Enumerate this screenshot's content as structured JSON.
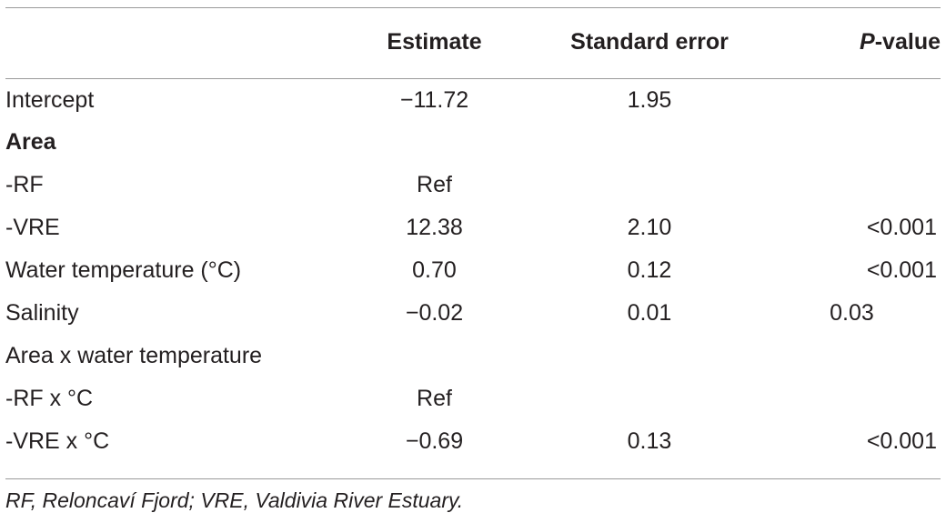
{
  "table": {
    "headers": [
      "",
      "Estimate",
      "Standard error",
      "P",
      "-value"
    ],
    "rows": [
      {
        "label": "Intercept",
        "bold": false,
        "estimate": "−11.72",
        "se": "1.95",
        "p": ""
      },
      {
        "label": "Area",
        "bold": true,
        "estimate": "",
        "se": "",
        "p": ""
      },
      {
        "label": "-RF",
        "bold": false,
        "estimate": "Ref",
        "se": "",
        "p": ""
      },
      {
        "label": "-VRE",
        "bold": false,
        "estimate": "12.38",
        "se": "2.10",
        "p": "<0.001"
      },
      {
        "label": "Water temperature (°C)",
        "bold": false,
        "estimate": "0.70",
        "se": "0.12",
        "p": "<0.001"
      },
      {
        "label": "Salinity",
        "bold": false,
        "estimate": "−0.02",
        "se": "0.01",
        "p": "0.03"
      },
      {
        "label": "Area x water temperature",
        "bold": false,
        "estimate": "",
        "se": "",
        "p": ""
      },
      {
        "label": "-RF x °C",
        "bold": false,
        "estimate": "Ref",
        "se": "",
        "p": ""
      },
      {
        "label": "-VRE x °C",
        "bold": false,
        "estimate": "−0.69",
        "se": "0.13",
        "p": "<0.001"
      }
    ]
  },
  "footnote": "RF, Reloncaví Fjord; VRE, Valdivia River Estuary."
}
